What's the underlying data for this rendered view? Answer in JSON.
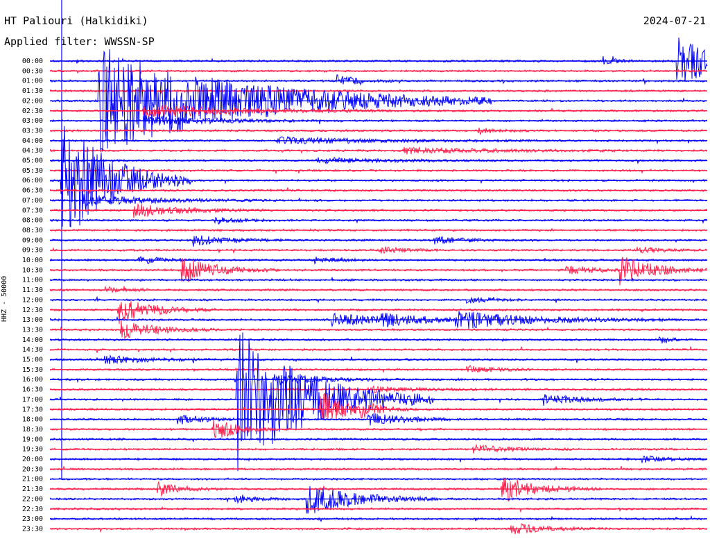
{
  "header": {
    "station": "HT Paliouri (Halkidiki)",
    "filter": "Applied filter: WWSSN-SP",
    "date": "2024-07-21",
    "channel_label": "HHZ - 50000"
  },
  "colors": {
    "trace_a": "#0000ff",
    "trace_b": "#ff1e4a",
    "text": "#000000",
    "background": "#ffffff"
  },
  "chart_data": {
    "type": "line",
    "title": "HT Paliouri (Halkidiki)",
    "subtitle": "Applied filter: WWSSN-SP",
    "date": "2024-07-21",
    "ylabel": "HHZ - 50000",
    "xlabel": "",
    "minutes_per_line": 30,
    "series_colors_alternating": [
      "#0000ff",
      "#ff1e4a"
    ],
    "rows": [
      {
        "label": "00:00"
      },
      {
        "label": "00:30"
      },
      {
        "label": "01:00"
      },
      {
        "label": "01:30"
      },
      {
        "label": "02:00"
      },
      {
        "label": "02:30"
      },
      {
        "label": "03:00"
      },
      {
        "label": "03:30"
      },
      {
        "label": "04:00"
      },
      {
        "label": "04:30"
      },
      {
        "label": "05:00"
      },
      {
        "label": "05:30"
      },
      {
        "label": "06:00"
      },
      {
        "label": "06:30"
      },
      {
        "label": "07:00"
      },
      {
        "label": "07:30"
      },
      {
        "label": "08:00"
      },
      {
        "label": "08:30"
      },
      {
        "label": "09:00"
      },
      {
        "label": "09:30"
      },
      {
        "label": "10:00"
      },
      {
        "label": "10:30"
      },
      {
        "label": "11:00"
      },
      {
        "label": "11:30"
      },
      {
        "label": "12:00"
      },
      {
        "label": "12:30"
      },
      {
        "label": "13:00"
      },
      {
        "label": "13:30"
      },
      {
        "label": "14:00"
      },
      {
        "label": "14:30"
      },
      {
        "label": "15:00"
      },
      {
        "label": "15:30"
      },
      {
        "label": "16:00"
      },
      {
        "label": "16:30"
      },
      {
        "label": "17:00"
      },
      {
        "label": "17:30"
      },
      {
        "label": "18:00"
      },
      {
        "label": "18:30"
      },
      {
        "label": "19:00"
      },
      {
        "label": "19:30"
      },
      {
        "label": "20:00"
      },
      {
        "label": "20:30"
      },
      {
        "label": "21:00"
      },
      {
        "label": "21:30"
      },
      {
        "label": "22:00"
      },
      {
        "label": "22:30"
      },
      {
        "label": "23:00"
      },
      {
        "label": "23:30"
      }
    ],
    "events": [
      {
        "row": 0,
        "minute": 28.6,
        "amp": 4.0,
        "dur": 1.8,
        "dir": 0
      },
      {
        "row": 0,
        "minute": 25.2,
        "amp": 0.6,
        "dur": 0.6,
        "dir": 0
      },
      {
        "row": 2,
        "minute": 13.1,
        "amp": 0.8,
        "dur": 1.0,
        "dir": 0
      },
      {
        "row": 4,
        "minute": 2.2,
        "amp": 8.0,
        "dur": 6.0,
        "dir": 1
      },
      {
        "row": 5,
        "minute": 4.2,
        "amp": 1.0,
        "dur": 4.0,
        "dir": 0
      },
      {
        "row": 6,
        "minute": 4.3,
        "amp": 0.7,
        "dur": 3.0,
        "dir": 0
      },
      {
        "row": 7,
        "minute": 19.5,
        "amp": 0.6,
        "dur": 0.8,
        "dir": 0
      },
      {
        "row": 8,
        "minute": 10.3,
        "amp": 0.5,
        "dur": 4.0,
        "dir": 0
      },
      {
        "row": 9,
        "minute": 16.1,
        "amp": 0.4,
        "dur": 4.0,
        "dir": 0
      },
      {
        "row": 10,
        "minute": 12.1,
        "amp": 0.4,
        "dur": 3.0,
        "dir": 0
      },
      {
        "row": 12,
        "minute": 0.5,
        "amp": 10.0,
        "dur": 2.0,
        "dir": 1
      },
      {
        "row": 14,
        "minute": 1.5,
        "amp": 0.8,
        "dur": 3.0,
        "dir": 0
      },
      {
        "row": 15,
        "minute": 3.8,
        "amp": 1.0,
        "dur": 2.0,
        "dir": 0
      },
      {
        "row": 16,
        "minute": 7.5,
        "amp": 0.5,
        "dur": 1.0,
        "dir": 0
      },
      {
        "row": 18,
        "minute": 6.5,
        "amp": 0.8,
        "dur": 1.5,
        "dir": 0
      },
      {
        "row": 18,
        "minute": 17.5,
        "amp": 0.5,
        "dur": 1.5,
        "dir": 0
      },
      {
        "row": 19,
        "minute": 15.0,
        "amp": 0.5,
        "dur": 1.0,
        "dir": 0
      },
      {
        "row": 19,
        "minute": 26.8,
        "amp": 0.5,
        "dur": 1.0,
        "dir": 0
      },
      {
        "row": 20,
        "minute": 4.0,
        "amp": 0.6,
        "dur": 1.0,
        "dir": 0
      },
      {
        "row": 20,
        "minute": 12.0,
        "amp": 0.5,
        "dur": 1.0,
        "dir": 0
      },
      {
        "row": 21,
        "minute": 6.0,
        "amp": 2.0,
        "dur": 1.5,
        "dir": 0
      },
      {
        "row": 21,
        "minute": 26.0,
        "amp": 2.0,
        "dur": 1.5,
        "dir": 0
      },
      {
        "row": 21,
        "minute": 23.5,
        "amp": 0.6,
        "dur": 1.5,
        "dir": 0
      },
      {
        "row": 23,
        "minute": 2.5,
        "amp": 0.4,
        "dur": 1.0,
        "dir": 0
      },
      {
        "row": 24,
        "minute": 19.0,
        "amp": 0.4,
        "dur": 1.0,
        "dir": 0
      },
      {
        "row": 25,
        "minute": 3.1,
        "amp": 2.0,
        "dur": 1.5,
        "dir": 0
      },
      {
        "row": 26,
        "minute": 12.8,
        "amp": 1.0,
        "dur": 2.5,
        "dir": 0
      },
      {
        "row": 26,
        "minute": 18.5,
        "amp": 1.2,
        "dur": 3.5,
        "dir": 0
      },
      {
        "row": 26,
        "minute": 15.1,
        "amp": 0.8,
        "dur": 1.5,
        "dir": 0
      },
      {
        "row": 27,
        "minute": 3.2,
        "amp": 1.5,
        "dur": 1.5,
        "dir": 0
      },
      {
        "row": 28,
        "minute": 27.8,
        "amp": 0.6,
        "dur": 0.5,
        "dir": 0
      },
      {
        "row": 30,
        "minute": 2.5,
        "amp": 0.6,
        "dur": 2.0,
        "dir": 0
      },
      {
        "row": 31,
        "minute": 19.0,
        "amp": 0.6,
        "dur": 1.0,
        "dir": 0
      },
      {
        "row": 32,
        "minute": 10.2,
        "amp": 0.8,
        "dur": 2.0,
        "dir": 0
      },
      {
        "row": 33,
        "minute": 14.5,
        "amp": 0.5,
        "dur": 2.0,
        "dir": 0
      },
      {
        "row": 34,
        "minute": 22.5,
        "amp": 0.8,
        "dur": 1.5,
        "dir": 0
      },
      {
        "row": 34,
        "minute": 8.5,
        "amp": 11.0,
        "dur": 3.0,
        "dir": 1
      },
      {
        "row": 35,
        "minute": 12.3,
        "amp": 3.0,
        "dur": 1.0,
        "dir": 0
      },
      {
        "row": 35,
        "minute": 14.2,
        "amp": 0.8,
        "dur": 1.0,
        "dir": 0
      },
      {
        "row": 36,
        "minute": 14.5,
        "amp": 1.0,
        "dur": 1.5,
        "dir": 0
      },
      {
        "row": 36,
        "minute": 5.8,
        "amp": 0.8,
        "dur": 1.0,
        "dir": 0
      },
      {
        "row": 37,
        "minute": 7.4,
        "amp": 1.8,
        "dur": 1.0,
        "dir": 0
      },
      {
        "row": 39,
        "minute": 19.3,
        "amp": 0.6,
        "dur": 1.5,
        "dir": 0
      },
      {
        "row": 40,
        "minute": 27.0,
        "amp": 0.5,
        "dur": 1.0,
        "dir": 0
      },
      {
        "row": 43,
        "minute": 4.9,
        "amp": 1.0,
        "dur": 1.0,
        "dir": 0
      },
      {
        "row": 43,
        "minute": 20.6,
        "amp": 2.0,
        "dur": 1.5,
        "dir": 0
      },
      {
        "row": 44,
        "minute": 8.4,
        "amp": 0.8,
        "dur": 0.8,
        "dir": 0
      },
      {
        "row": 44,
        "minute": 11.7,
        "amp": 2.5,
        "dur": 2.0,
        "dir": 0
      },
      {
        "row": 47,
        "minute": 21.0,
        "amp": 0.8,
        "dur": 1.5,
        "dir": 0
      }
    ]
  }
}
